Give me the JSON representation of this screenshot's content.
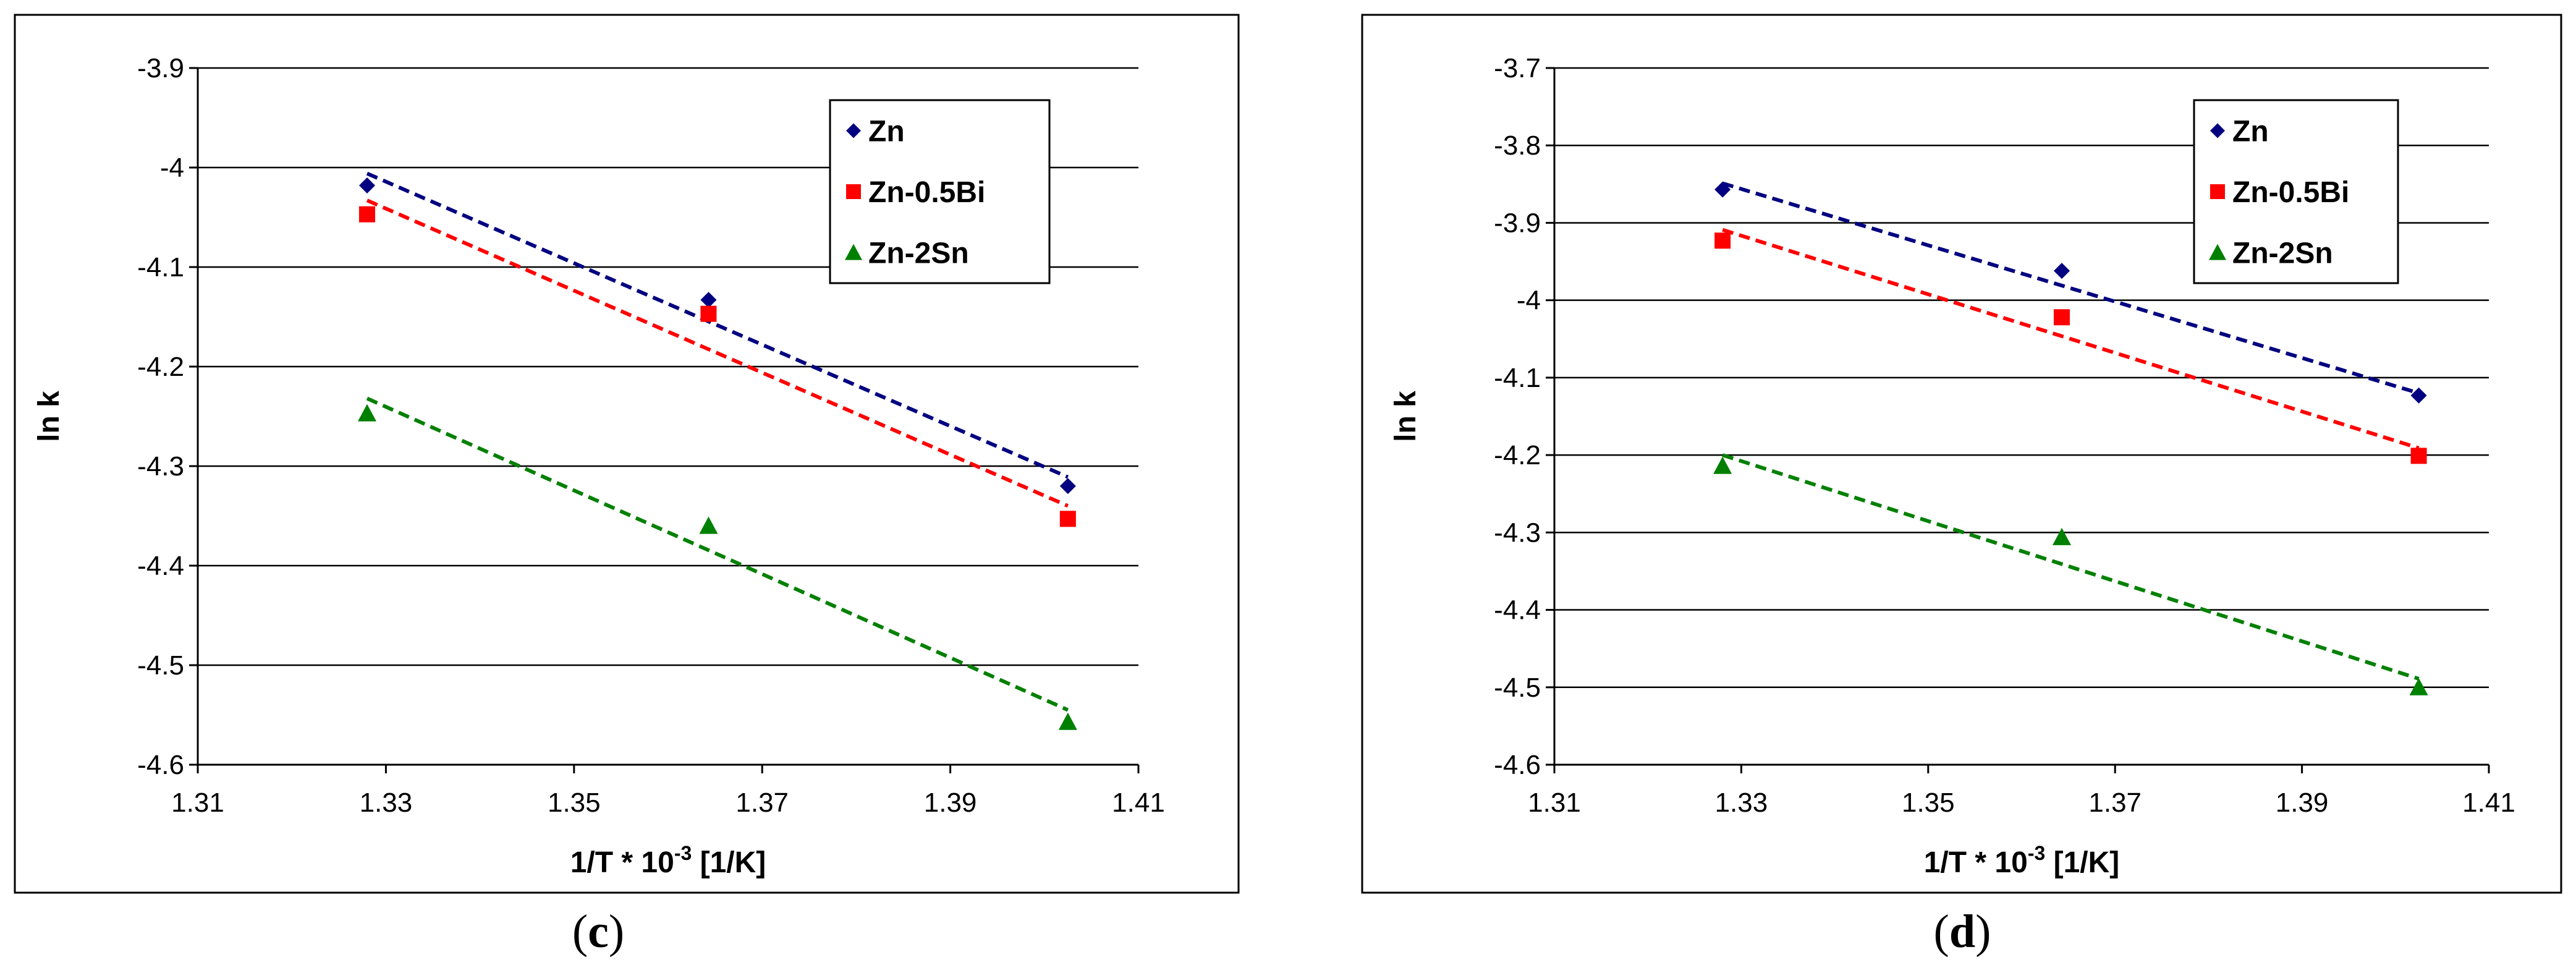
{
  "chart_data": [
    {
      "type": "scatter",
      "panel_label": "c",
      "xlabel": "1/T * 10",
      "xlabel_sup": "-3",
      "xlabel_unit": " [1/K]",
      "ylabel": "ln k",
      "xlim": [
        1.31,
        1.41
      ],
      "ylim": [
        -4.6,
        -3.9
      ],
      "xticks": [
        1.31,
        1.33,
        1.35,
        1.37,
        1.39,
        1.41
      ],
      "xtick_labels": [
        "1.31",
        "1.33",
        "1.35",
        "1.37",
        "1.39",
        "1.41"
      ],
      "yticks": [
        -3.9,
        -4,
        -4.1,
        -4.2,
        -4.3,
        -4.4,
        -4.5,
        -4.6
      ],
      "ytick_labels": [
        "-3.9",
        "-4",
        "-4.1",
        "-4.2",
        "-4.3",
        "-4.4",
        "-4.5",
        "-4.6"
      ],
      "grid": "horizontal",
      "legend_position": "top-right",
      "series": [
        {
          "name": "Zn",
          "marker": "diamond",
          "color": "#000080",
          "x": [
            1.328,
            1.3643,
            1.4025
          ],
          "y": [
            -4.018,
            -4.133,
            -4.32
          ],
          "trend": [
            [
              1.328,
              -4.006
            ],
            [
              1.4025,
              -4.311
            ]
          ]
        },
        {
          "name": "Zn-0.5Bi",
          "marker": "square",
          "color": "#ff0000",
          "x": [
            1.328,
            1.3643,
            1.4025
          ],
          "y": [
            -4.047,
            -4.147,
            -4.353
          ],
          "trend": [
            [
              1.328,
              -4.033
            ],
            [
              1.4025,
              -4.34
            ]
          ]
        },
        {
          "name": "Zn-2Sn",
          "marker": "triangle",
          "color": "#008000",
          "x": [
            1.328,
            1.3643,
            1.4025
          ],
          "y": [
            -4.247,
            -4.36,
            -4.557
          ],
          "trend": [
            [
              1.328,
              -4.232
            ],
            [
              1.4025,
              -4.545
            ]
          ]
        }
      ]
    },
    {
      "type": "scatter",
      "panel_label": "d",
      "xlabel": "1/T * 10",
      "xlabel_sup": "-3",
      "xlabel_unit": " [1/K]",
      "ylabel": "ln k",
      "xlim": [
        1.31,
        1.41
      ],
      "ylim": [
        -4.6,
        -3.7
      ],
      "xticks": [
        1.31,
        1.33,
        1.35,
        1.37,
        1.39,
        1.41
      ],
      "xtick_labels": [
        "1.31",
        "1.33",
        "1.35",
        "1.37",
        "1.39",
        "1.41"
      ],
      "yticks": [
        -3.7,
        -3.8,
        -3.9,
        -4,
        -4.1,
        -4.2,
        -4.3,
        -4.4,
        -4.5,
        -4.6
      ],
      "ytick_labels": [
        "-3.7",
        "-3.8",
        "-3.9",
        "-4",
        "-4.1",
        "-4.2",
        "-4.3",
        "-4.4",
        "-4.5",
        "-4.6"
      ],
      "grid": "horizontal",
      "legend_position": "top-right",
      "series": [
        {
          "name": "Zn",
          "marker": "diamond",
          "color": "#000080",
          "x": [
            1.328,
            1.3643,
            1.4025
          ],
          "y": [
            -3.857,
            -3.962,
            -4.123
          ],
          "trend": [
            [
              1.328,
              -3.849
            ],
            [
              1.4025,
              -4.12
            ]
          ]
        },
        {
          "name": "Zn-0.5Bi",
          "marker": "square",
          "color": "#ff0000",
          "x": [
            1.328,
            1.3643,
            1.4025
          ],
          "y": [
            -3.923,
            -4.022,
            -4.201
          ],
          "trend": [
            [
              1.328,
              -3.909
            ],
            [
              1.4025,
              -4.191
            ]
          ]
        },
        {
          "name": "Zn-2Sn",
          "marker": "triangle",
          "color": "#008000",
          "x": [
            1.328,
            1.3643,
            1.4025
          ],
          "y": [
            -4.214,
            -4.306,
            -4.5
          ],
          "trend": [
            [
              1.328,
              -4.2
            ],
            [
              1.4025,
              -4.489
            ]
          ]
        }
      ]
    }
  ]
}
